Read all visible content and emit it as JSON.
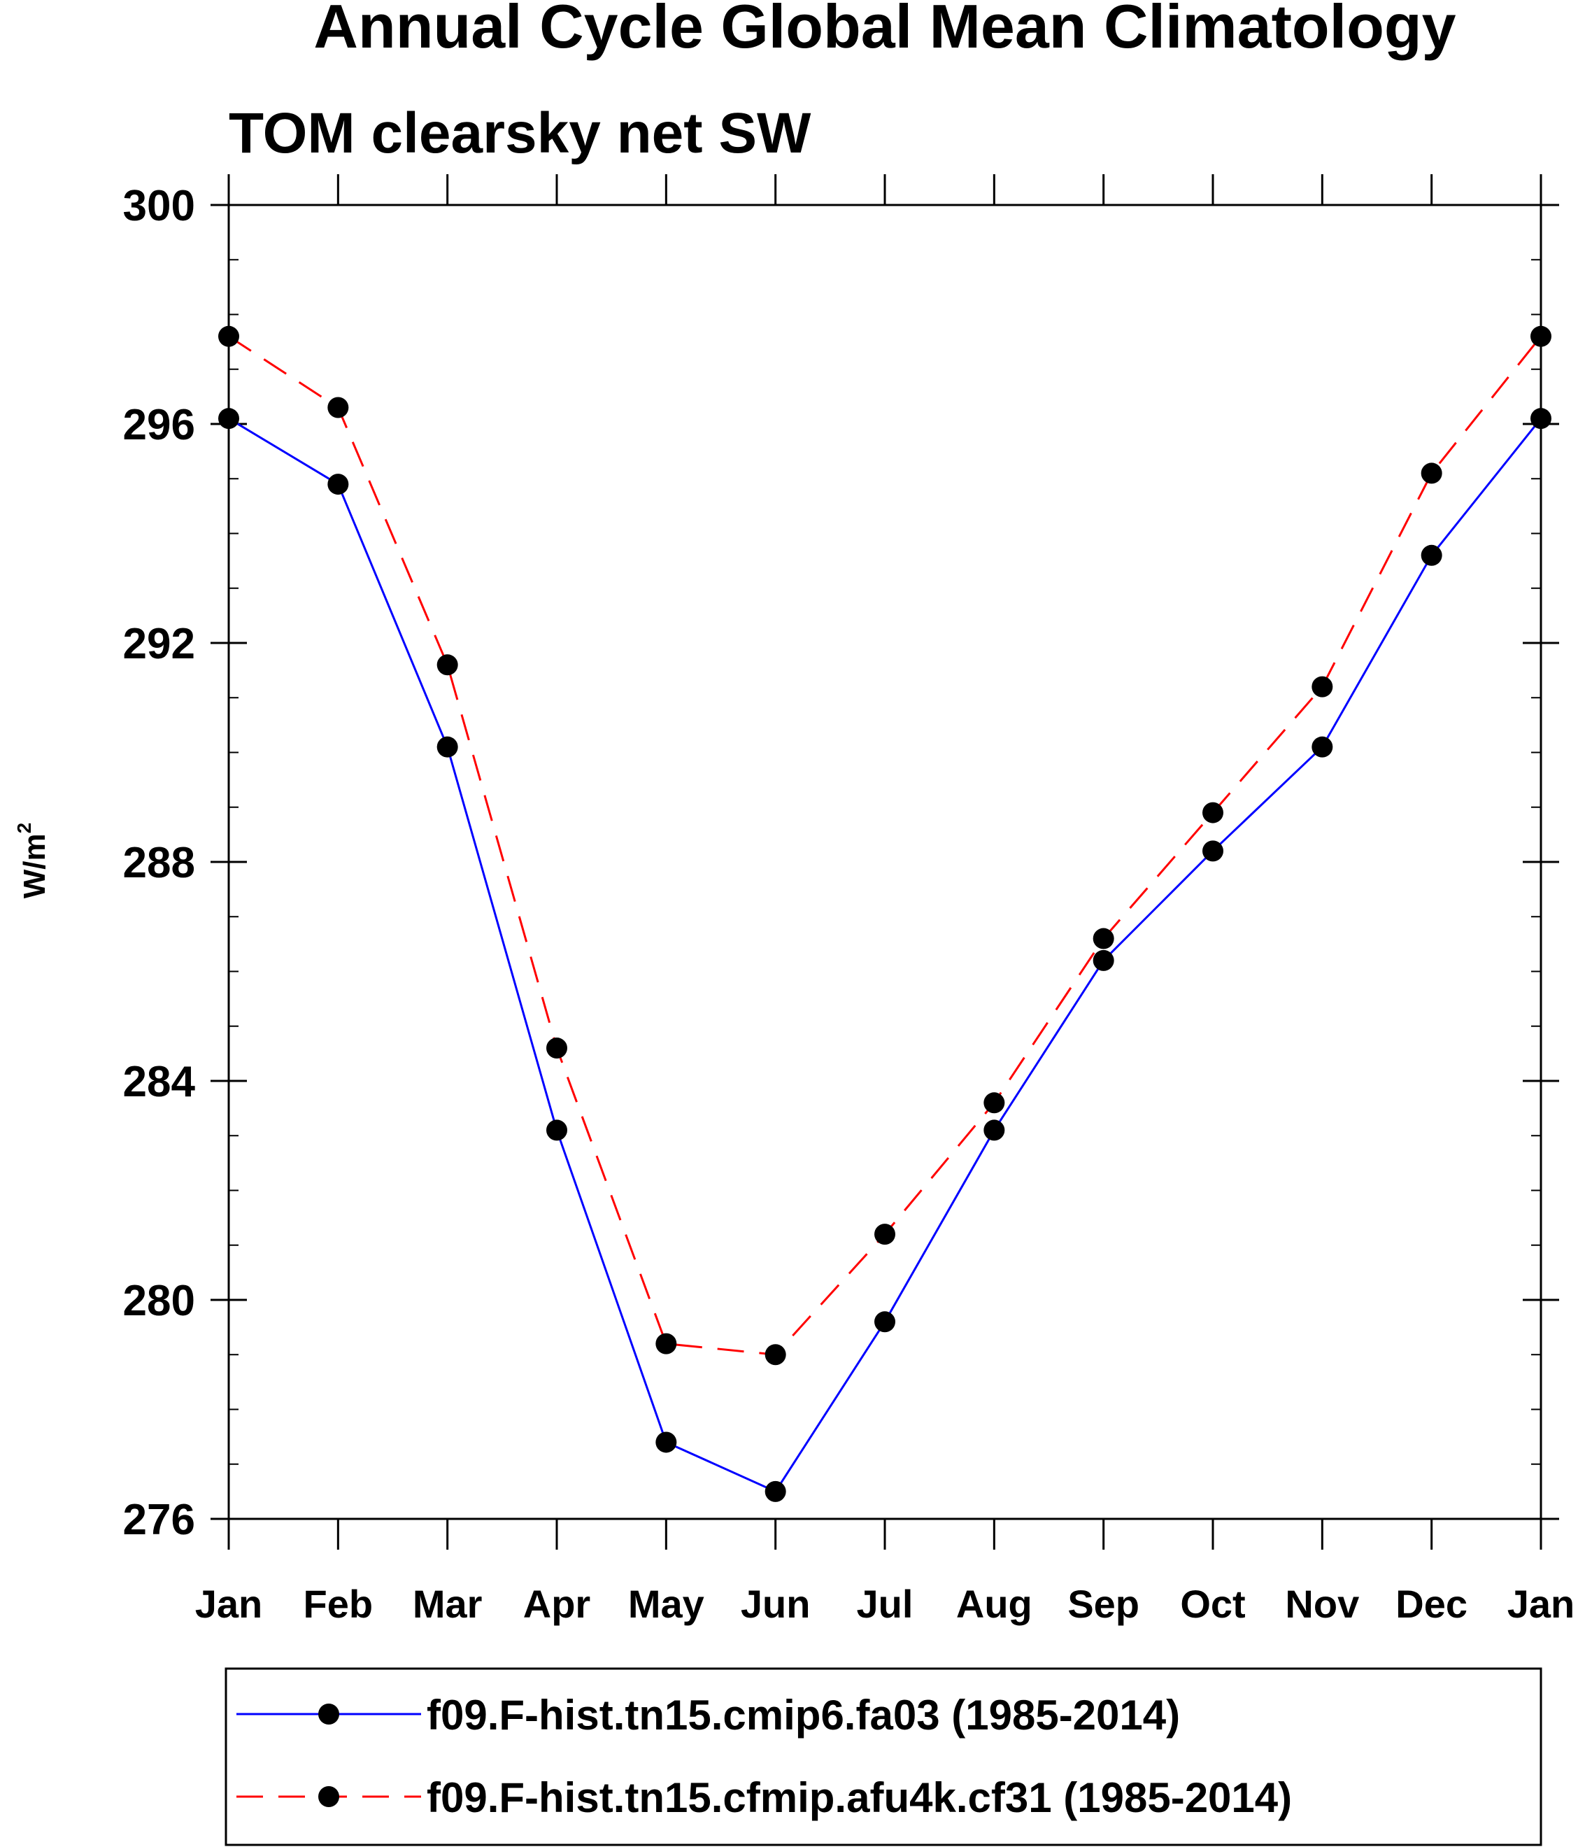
{
  "chart_data": {
    "type": "line",
    "title": "Annual Cycle Global Mean Climatology",
    "subtitle": "TOM clearsky net SW",
    "ylabel": "W/m",
    "ylabel_superscript": "2",
    "xlabel": "",
    "categories": [
      "Jan",
      "Feb",
      "Mar",
      "Apr",
      "May",
      "Jun",
      "Jul",
      "Aug",
      "Sep",
      "Oct",
      "Nov",
      "Dec",
      "Jan"
    ],
    "ylim": [
      276,
      300
    ],
    "yticks": [
      276,
      280,
      284,
      288,
      292,
      296,
      300
    ],
    "ytick_labels": [
      "276",
      "280",
      "284",
      "288",
      "292",
      "296",
      "300"
    ],
    "minor_tick_step": 1,
    "grid": false,
    "legend_position": "bottom",
    "series": [
      {
        "name": "f09.F-hist.tn15.cmip6.fa03 (1985-2014)",
        "color": "#0000ff",
        "line_style": "solid",
        "marker": "filled-circle",
        "values": [
          296.1,
          294.9,
          290.1,
          283.1,
          277.4,
          276.5,
          279.6,
          283.1,
          286.2,
          288.2,
          290.1,
          293.6,
          296.1
        ]
      },
      {
        "name": "f09.F-hist.tn15.cfmip.afu4k.cf31 (1985-2014)",
        "color": "#ff0000",
        "line_style": "dashed",
        "marker": "filled-circle",
        "values": [
          297.6,
          296.3,
          291.6,
          284.6,
          279.2,
          279.0,
          281.2,
          283.6,
          286.6,
          288.9,
          291.2,
          295.1,
          297.6
        ]
      }
    ]
  }
}
